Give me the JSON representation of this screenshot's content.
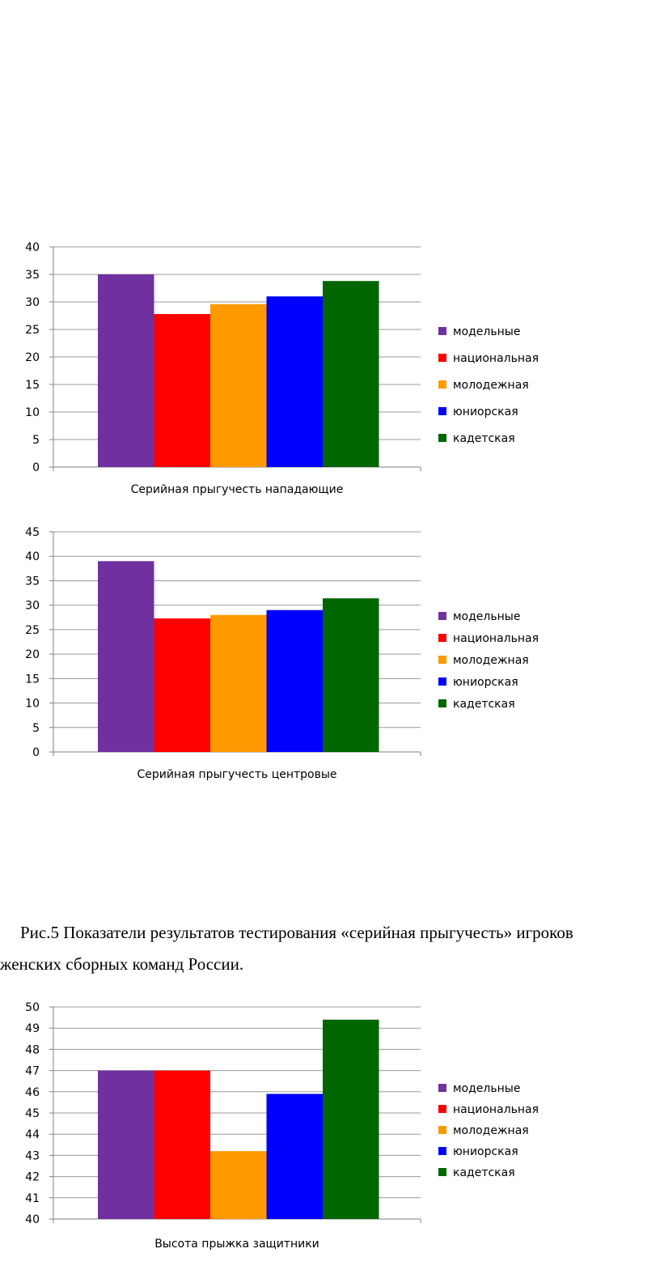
{
  "caption": {
    "line1": "Рис.5 Показатели результатов тестирования «серийная прыгучесть» игроков",
    "line2": "женских сборных команд России."
  },
  "legend_labels": [
    "модельные",
    "национальная",
    "молодежная",
    "юниорская",
    "кадетская"
  ],
  "colors": [
    "#7030a0",
    "#ff0000",
    "#ff9900",
    "#0000ff",
    "#006600"
  ],
  "chart_data": [
    {
      "type": "bar",
      "xlabel": "Серийная прыгучесть нападающие",
      "ylim": [
        0,
        40
      ],
      "yticks": [
        0,
        5,
        10,
        15,
        20,
        25,
        30,
        35,
        40
      ],
      "series": [
        {
          "name": "модельные",
          "values": [
            35
          ]
        },
        {
          "name": "национальная",
          "values": [
            27.8
          ]
        },
        {
          "name": "молодежная",
          "values": [
            29.6
          ]
        },
        {
          "name": "юниорская",
          "values": [
            31
          ]
        },
        {
          "name": "кадетская",
          "values": [
            33.8
          ]
        }
      ],
      "grid": true,
      "legend": "right"
    },
    {
      "type": "bar",
      "xlabel": "Серийная прыгучесть центровые",
      "ylim": [
        0,
        45
      ],
      "yticks": [
        0,
        5,
        10,
        15,
        20,
        25,
        30,
        35,
        40,
        45
      ],
      "series": [
        {
          "name": "модельные",
          "values": [
            39
          ]
        },
        {
          "name": "национальная",
          "values": [
            27.3
          ]
        },
        {
          "name": "молодежная",
          "values": [
            28
          ]
        },
        {
          "name": "юниорская",
          "values": [
            29
          ]
        },
        {
          "name": "кадетская",
          "values": [
            31.4
          ]
        }
      ],
      "grid": true,
      "legend": "right"
    },
    {
      "type": "bar",
      "xlabel": "Высота прыжка защитники",
      "ylim": [
        40,
        50
      ],
      "yticks": [
        40,
        41,
        42,
        43,
        44,
        45,
        46,
        47,
        48,
        49,
        50
      ],
      "series": [
        {
          "name": "модельные",
          "values": [
            47
          ]
        },
        {
          "name": "национальная",
          "values": [
            47
          ]
        },
        {
          "name": "молодежная",
          "values": [
            43.2
          ]
        },
        {
          "name": "юниорская",
          "values": [
            45.9
          ]
        },
        {
          "name": "кадетская",
          "values": [
            49.4
          ]
        }
      ],
      "grid": true,
      "legend": "right"
    }
  ]
}
